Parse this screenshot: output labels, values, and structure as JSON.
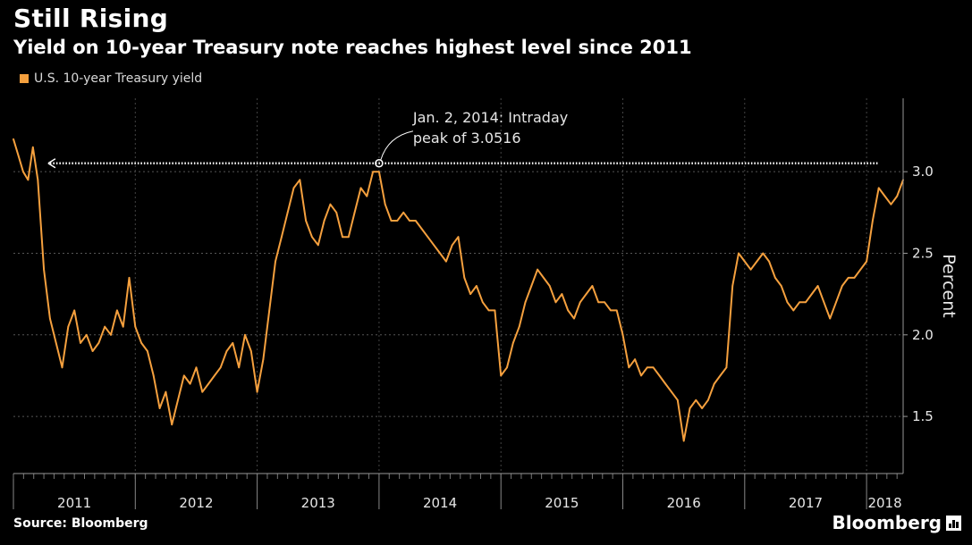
{
  "header": {
    "title": "Still Rising",
    "subtitle": "Yield on 10-year Treasury note reaches highest level since 2011"
  },
  "legend": {
    "label": "U.S. 10-year Treasury yield",
    "color": "#f5a03e"
  },
  "footer": {
    "source": "Source: Bloomberg",
    "brand": "Bloomberg"
  },
  "chart_data": {
    "type": "line",
    "ylabel": "Percent",
    "xlabel": "",
    "ylim": [
      1.15,
      3.45
    ],
    "yticks": [
      1.5,
      2.0,
      2.5,
      3.0
    ],
    "ytick_labels": [
      "1.5",
      "2.0",
      "2.5",
      "3.0"
    ],
    "xlim": [
      2011.0,
      2018.3
    ],
    "x_tick_labels": [
      "2011",
      "2012",
      "2013",
      "2014",
      "2015",
      "2016",
      "2017",
      "2018"
    ],
    "year_boundaries": [
      2011,
      2012,
      2013,
      2014,
      2015,
      2016,
      2017,
      2018
    ],
    "grid": true,
    "reference_line": {
      "value": 3.0516,
      "from_x": 2011.3,
      "to_x": 2018.1
    },
    "annotation": {
      "line1": "Jan. 2, 2014: Intraday",
      "line2": "peak of 3.0516",
      "x": 2014.0,
      "y": 3.0516
    },
    "series": [
      {
        "name": "U.S. 10-year Treasury yield",
        "x": [
          2011.0,
          2011.04,
          2011.08,
          2011.12,
          2011.16,
          2011.2,
          2011.25,
          2011.3,
          2011.35,
          2011.4,
          2011.45,
          2011.5,
          2011.55,
          2011.6,
          2011.65,
          2011.7,
          2011.75,
          2011.8,
          2011.85,
          2011.9,
          2011.95,
          2012.0,
          2012.05,
          2012.1,
          2012.15,
          2012.2,
          2012.25,
          2012.3,
          2012.35,
          2012.4,
          2012.45,
          2012.5,
          2012.55,
          2012.6,
          2012.65,
          2012.7,
          2012.75,
          2012.8,
          2012.85,
          2012.9,
          2012.95,
          2013.0,
          2013.05,
          2013.1,
          2013.15,
          2013.2,
          2013.25,
          2013.3,
          2013.35,
          2013.4,
          2013.45,
          2013.5,
          2013.55,
          2013.6,
          2013.65,
          2013.7,
          2013.75,
          2013.8,
          2013.85,
          2013.9,
          2013.95,
          2014.0,
          2014.05,
          2014.1,
          2014.15,
          2014.2,
          2014.25,
          2014.3,
          2014.35,
          2014.4,
          2014.45,
          2014.5,
          2014.55,
          2014.6,
          2014.65,
          2014.7,
          2014.75,
          2014.8,
          2014.85,
          2014.9,
          2014.95,
          2015.0,
          2015.05,
          2015.1,
          2015.15,
          2015.2,
          2015.25,
          2015.3,
          2015.35,
          2015.4,
          2015.45,
          2015.5,
          2015.55,
          2015.6,
          2015.65,
          2015.7,
          2015.75,
          2015.8,
          2015.85,
          2015.9,
          2015.95,
          2016.0,
          2016.05,
          2016.1,
          2016.15,
          2016.2,
          2016.25,
          2016.3,
          2016.35,
          2016.4,
          2016.45,
          2016.5,
          2016.55,
          2016.6,
          2016.65,
          2016.7,
          2016.75,
          2016.8,
          2016.85,
          2016.9,
          2016.95,
          2017.0,
          2017.05,
          2017.1,
          2017.15,
          2017.2,
          2017.25,
          2017.3,
          2017.35,
          2017.4,
          2017.45,
          2017.5,
          2017.55,
          2017.6,
          2017.65,
          2017.7,
          2017.75,
          2017.8,
          2017.85,
          2017.9,
          2017.95,
          2018.0,
          2018.05,
          2018.1,
          2018.15,
          2018.2,
          2018.25,
          2018.3
        ],
        "values": [
          3.2,
          3.1,
          3.0,
          2.95,
          3.15,
          2.95,
          2.4,
          2.1,
          1.95,
          1.8,
          2.05,
          2.15,
          1.95,
          2.0,
          1.9,
          1.95,
          2.05,
          2.0,
          2.15,
          2.05,
          2.35,
          2.05,
          1.95,
          1.9,
          1.75,
          1.55,
          1.65,
          1.45,
          1.6,
          1.75,
          1.7,
          1.8,
          1.65,
          1.7,
          1.75,
          1.8,
          1.9,
          1.95,
          1.8,
          2.0,
          1.9,
          1.65,
          1.85,
          2.15,
          2.45,
          2.6,
          2.75,
          2.9,
          2.95,
          2.7,
          2.6,
          2.55,
          2.7,
          2.8,
          2.75,
          2.6,
          2.6,
          2.75,
          2.9,
          2.85,
          3.0,
          3.0,
          2.8,
          2.7,
          2.7,
          2.75,
          2.7,
          2.7,
          2.65,
          2.6,
          2.55,
          2.5,
          2.45,
          2.55,
          2.6,
          2.35,
          2.25,
          2.3,
          2.2,
          2.15,
          2.15,
          1.75,
          1.8,
          1.95,
          2.05,
          2.2,
          2.3,
          2.4,
          2.35,
          2.3,
          2.2,
          2.25,
          2.15,
          2.1,
          2.2,
          2.25,
          2.3,
          2.2,
          2.2,
          2.15,
          2.15,
          2.0,
          1.8,
          1.85,
          1.75,
          1.8,
          1.8,
          1.75,
          1.7,
          1.65,
          1.6,
          1.35,
          1.55,
          1.6,
          1.55,
          1.6,
          1.7,
          1.75,
          1.8,
          2.3,
          2.5,
          2.45,
          2.4,
          2.45,
          2.5,
          2.45,
          2.35,
          2.3,
          2.2,
          2.15,
          2.2,
          2.2,
          2.25,
          2.3,
          2.2,
          2.1,
          2.2,
          2.3,
          2.35,
          2.35,
          2.4,
          2.45,
          2.7,
          2.9,
          2.85,
          2.8,
          2.85,
          2.95
        ]
      }
    ]
  }
}
